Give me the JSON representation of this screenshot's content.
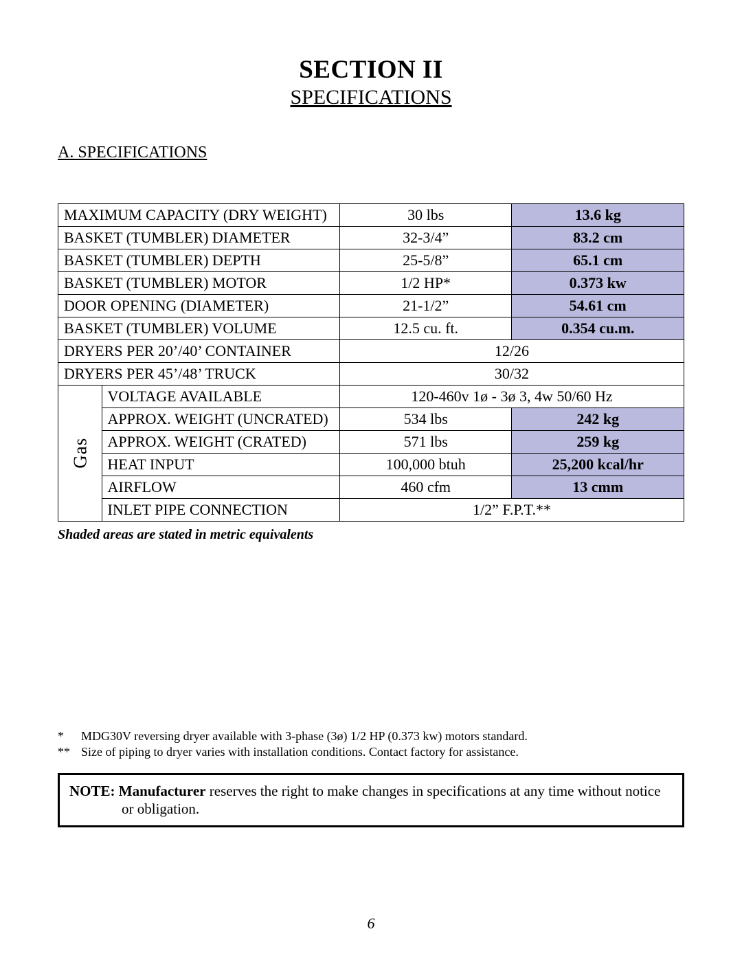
{
  "section_title": "SECTION II",
  "section_subtitle": "SPECIFICATIONS",
  "sub_heading": "A.   SPECIFICATIONS",
  "colors": {
    "shaded_bg": "#babade",
    "border": "#000000",
    "text": "#000000",
    "page_bg": "#ffffff"
  },
  "table": {
    "gas_label": "Gas",
    "rows": [
      {
        "label": "MAXIMUM CAPACITY (DRY WEIGHT)",
        "v1": "30 lbs",
        "v2": "13.6 kg",
        "shaded": true
      },
      {
        "label": "BASKET (TUMBLER) DIAMETER",
        "v1": "32-3/4”",
        "v2": "83.2 cm",
        "shaded": true
      },
      {
        "label": "BASKET (TUMBLER) DEPTH",
        "v1": "25-5/8”",
        "v2": "65.1 cm",
        "shaded": true
      },
      {
        "label": "BASKET (TUMBLER) MOTOR",
        "v1": "1/2 HP*",
        "v2": "0.373 kw",
        "shaded": true
      },
      {
        "label": "DOOR OPENING (DIAMETER)",
        "v1": "21-1/2”",
        "v2": "54.61 cm",
        "shaded": true
      },
      {
        "label": "BASKET (TUMBLER) VOLUME",
        "v1": "12.5 cu. ft.",
        "v2": "0.354 cu.m.",
        "shaded": true
      },
      {
        "label": "DRYERS PER 20’/40’ CONTAINER",
        "full": "12/26"
      },
      {
        "label": "DRYERS PER 45’/48’ TRUCK",
        "full": "30/32"
      }
    ],
    "gas_rows": [
      {
        "label": "VOLTAGE AVAILABLE",
        "full": "120-460v  1ø - 3ø  3, 4w  50/60 Hz"
      },
      {
        "label": "APPROX. WEIGHT (UNCRATED)",
        "v1": "534 lbs",
        "v2": "242 kg",
        "shaded": true
      },
      {
        "label": "APPROX. WEIGHT (CRATED)",
        "v1": "571 lbs",
        "v2": "259 kg",
        "shaded": true
      },
      {
        "label": "HEAT INPUT",
        "v1": "100,000 btuh",
        "v2": "25,200 kcal/hr",
        "shaded": true
      },
      {
        "label": "AIRFLOW",
        "v1": "460 cfm",
        "v2": "13 cmm",
        "shaded": true
      },
      {
        "label": "INLET PIPE CONNECTION",
        "full": "1/2” F.P.T.**"
      }
    ]
  },
  "shade_note": "Shaded areas are stated in metric equivalents",
  "footnotes": [
    {
      "sym": "*",
      "text": "MDG30V reversing dryer available with 3-phase (3ø) 1/2 HP (0.373 kw) motors standard."
    },
    {
      "sym": "**",
      "text": "Size of piping to dryer varies with installation conditions.  Contact factory for assistance."
    }
  ],
  "note": {
    "lead": "NOTE:   Manufacturer",
    "rest": " reserves the right to make changes in specifications at any time without notice",
    "line2": "or obligation."
  },
  "page_number": "6"
}
